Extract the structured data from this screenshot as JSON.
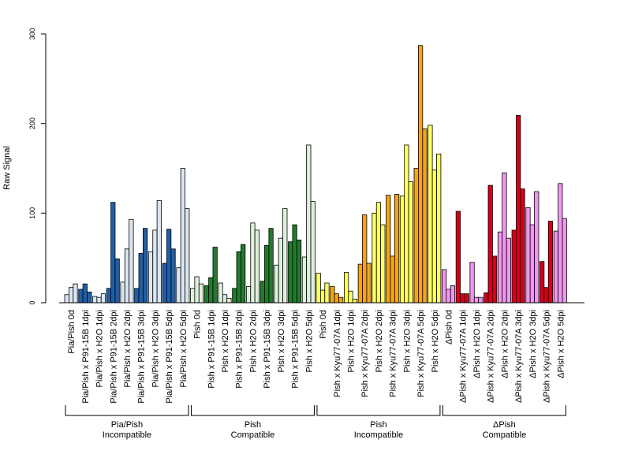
{
  "chart_data": {
    "type": "bar",
    "ylabel": "Raw Signal",
    "xlabel": "",
    "ylim": [
      0,
      300
    ],
    "yticks": [
      0,
      100,
      200,
      300
    ],
    "grid": false,
    "categories": [
      {
        "label": "Pia/Pish 0d",
        "color": "#dbe6f1",
        "values": [
          9,
          17,
          21
        ]
      },
      {
        "label": "Pia/Pish x P91-15B 1dpi",
        "color": "#1f5fa8",
        "values": [
          15,
          21,
          12
        ]
      },
      {
        "label": "Pia/Pish x H2O 1dpi",
        "color": "#dbe6f1",
        "values": [
          7,
          6,
          10
        ]
      },
      {
        "label": "Pia/Pish x P91-15B 2dpi",
        "color": "#1f5fa8",
        "values": [
          16,
          112,
          49
        ]
      },
      {
        "label": "Pia/Pish x H2O 2dpi",
        "color": "#dbe6f1",
        "values": [
          23,
          60,
          93
        ]
      },
      {
        "label": "Pia/Pish x P91-15B 3dpi",
        "color": "#1f5fa8",
        "values": [
          16,
          55,
          83
        ]
      },
      {
        "label": "Pia/Pish x H2O 3dpi",
        "color": "#dbe6f1",
        "values": [
          57,
          81,
          114
        ]
      },
      {
        "label": "Pia/Pish x P91-15B 5dpi",
        "color": "#1f5fa8",
        "values": [
          44,
          82,
          60
        ]
      },
      {
        "label": "Pia/Pish x H2O 5dpi",
        "color": "#dbe6f1",
        "values": [
          39,
          150,
          105
        ]
      },
      {
        "label": "Pish 0d",
        "color": "#dff0dc",
        "values": [
          16,
          29,
          21
        ]
      },
      {
        "label": "Pish x P91-15B 1dpi",
        "color": "#237a2e",
        "values": [
          19,
          28,
          62
        ]
      },
      {
        "label": "Pish x H2O 1dpi",
        "color": "#dff0dc",
        "values": [
          22,
          9,
          5
        ]
      },
      {
        "label": "Pish x P91-15B 2dpi",
        "color": "#237a2e",
        "values": [
          16,
          57,
          65
        ]
      },
      {
        "label": "Pish x H2O 2dpi",
        "color": "#dff0dc",
        "values": [
          18,
          89,
          81
        ]
      },
      {
        "label": "Pish x P91-15B 3dpi",
        "color": "#237a2e",
        "values": [
          24,
          64,
          83
        ]
      },
      {
        "label": "Pish x H2O 3dpi",
        "color": "#dff0dc",
        "values": [
          42,
          72,
          105
        ]
      },
      {
        "label": "Pish x P91-15B 5dpi",
        "color": "#237a2e",
        "values": [
          68,
          87,
          70
        ]
      },
      {
        "label": "Pish x H2O 5dpi",
        "color": "#dff0dc",
        "values": [
          51,
          176,
          113
        ]
      },
      {
        "label": "Pish 0d",
        "color": "#ffff66",
        "values": [
          33,
          14,
          22
        ]
      },
      {
        "label": "Pish x Kyu77-07A 1dpi",
        "color": "#f2a51a",
        "values": [
          18,
          10,
          6
        ]
      },
      {
        "label": "Pish x H2O 1dpi",
        "color": "#ffff66",
        "values": [
          34,
          13,
          4
        ]
      },
      {
        "label": "Pish x Kyu77-07A 2dpi",
        "color": "#f2a51a",
        "values": [
          43,
          98,
          44
        ]
      },
      {
        "label": "Pish x H2O 2dpi",
        "color": "#ffff66",
        "values": [
          100,
          112,
          87
        ]
      },
      {
        "label": "Pish x Kyu77-07A 3dpi",
        "color": "#f2a51a",
        "values": [
          120,
          52,
          121
        ]
      },
      {
        "label": "Pish x H2O 3dpi",
        "color": "#ffff66",
        "values": [
          119,
          176,
          135
        ]
      },
      {
        "label": "Pish x Kyu77-07A 5dpi",
        "color": "#f2a51a",
        "values": [
          150,
          287,
          194
        ]
      },
      {
        "label": "Pish x H2O 5dpi",
        "color": "#ffff66",
        "values": [
          198,
          148,
          166
        ]
      },
      {
        "label": "ΔPish 0d",
        "color": "#ee99ee",
        "values": [
          37,
          15,
          19
        ]
      },
      {
        "label": "ΔPish x Kyu77-07A 1dpi",
        "color": "#d0021b",
        "values": [
          102,
          10,
          10
        ]
      },
      {
        "label": "ΔPish x H2O 1dpi",
        "color": "#ee99ee",
        "values": [
          45,
          6,
          6
        ]
      },
      {
        "label": "ΔPish x Kyu77-07A 2dpi",
        "color": "#d0021b",
        "values": [
          11,
          131,
          52
        ]
      },
      {
        "label": "ΔPish x H2O 2dpi",
        "color": "#ee99ee",
        "values": [
          79,
          145,
          72
        ]
      },
      {
        "label": "ΔPish x Kyu77-07A 3dpi",
        "color": "#d0021b",
        "values": [
          81,
          209,
          127
        ]
      },
      {
        "label": "ΔPish x H2O 3dpi",
        "color": "#ee99ee",
        "values": [
          106,
          87,
          124
        ]
      },
      {
        "label": "ΔPish x Kyu77-07A 5dpi",
        "color": "#d0021b",
        "values": [
          46,
          17,
          91
        ]
      },
      {
        "label": "ΔPish x H2O 5dpi",
        "color": "#ee99ee",
        "values": [
          80,
          133,
          94
        ]
      }
    ],
    "groups": [
      {
        "line1": "Pia/Pish",
        "line2": "Incompatible",
        "start": 0,
        "end": 8
      },
      {
        "line1": "Pish",
        "line2": "Compatible",
        "start": 9,
        "end": 17
      },
      {
        "line1": "Pish",
        "line2": "Incompatible",
        "start": 18,
        "end": 26
      },
      {
        "line1": "ΔPish",
        "line2": "Compatible",
        "start": 27,
        "end": 35
      }
    ]
  }
}
